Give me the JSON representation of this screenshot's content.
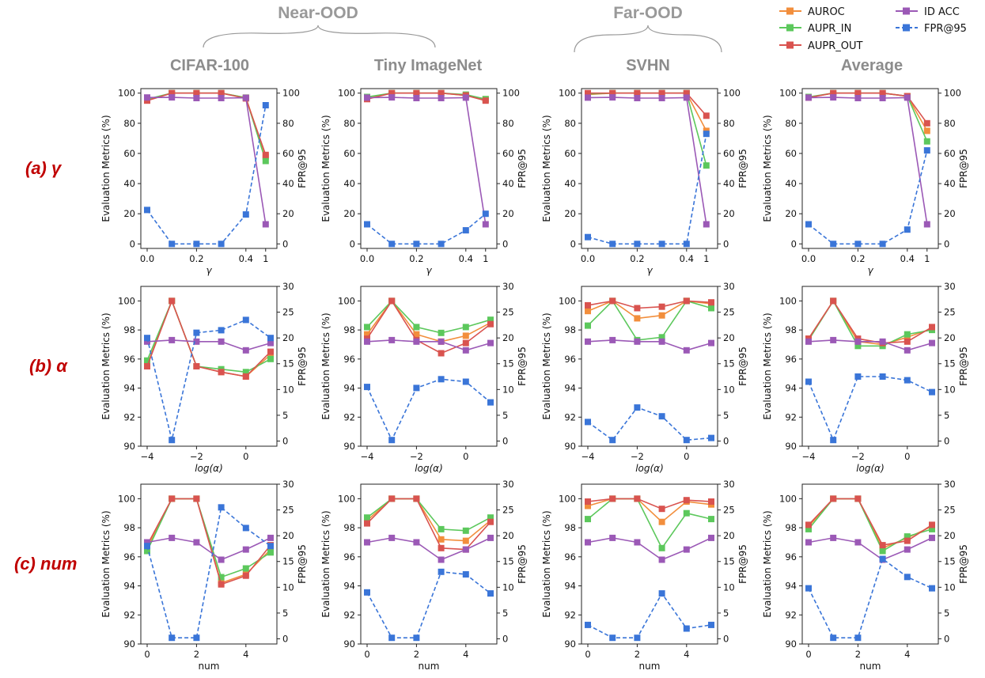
{
  "groups": [
    {
      "label": "Near-OOD",
      "columns": [
        0,
        1
      ]
    },
    {
      "label": "Far-OOD",
      "columns": [
        2
      ]
    }
  ],
  "columns": [
    "CIFAR-100",
    "Tiny ImageNet",
    "SVHN",
    "Average"
  ],
  "rows": [
    "(a)  γ",
    "(b) α",
    "(c) num"
  ],
  "legend": [
    {
      "name": "AUROC",
      "color": "#f28e3c",
      "style": "solid"
    },
    {
      "name": "ID ACC",
      "color": "#9b59b6",
      "style": "solid"
    },
    {
      "name": "AUPR_IN",
      "color": "#5cc85c",
      "style": "solid"
    },
    {
      "name": "FPR@95",
      "color": "#3a75d8",
      "style": "dashed"
    },
    {
      "name": "AUPR_OUT",
      "color": "#d9534f",
      "style": "solid"
    }
  ],
  "chart_data": [
    {
      "row": "gamma",
      "type": "line",
      "x": [
        0.0,
        0.1,
        0.2,
        0.3,
        0.4,
        1
      ],
      "x_ticks": [
        "0.0",
        "0.2",
        "0.4",
        "1"
      ],
      "xlabel": "γ",
      "ylabel_left": "Evaluation Metrics (%)",
      "ylabel_right": "FPR@95",
      "ylim_left": [
        -3,
        103
      ],
      "yticks_left": [
        0,
        20,
        40,
        60,
        80,
        100
      ],
      "ylim_right": [
        -3,
        103
      ],
      "yticks_right": [
        0,
        20,
        40,
        60,
        80,
        100
      ],
      "panels": [
        {
          "column": "CIFAR-100",
          "series": [
            {
              "name": "AUROC",
              "values": [
                95.5,
                100,
                100,
                100,
                97,
                58
              ]
            },
            {
              "name": "AUPR_IN",
              "values": [
                96,
                100,
                100,
                100,
                97,
                55
              ]
            },
            {
              "name": "AUPR_OUT",
              "values": [
                95,
                100,
                100,
                100,
                96.5,
                59
              ]
            },
            {
              "name": "ID ACC",
              "values": [
                97.1,
                97.2,
                96.7,
                96.7,
                96.9,
                13
              ]
            },
            {
              "name": "FPR@95",
              "values": [
                22.5,
                0,
                0,
                0,
                19.5,
                92
              ]
            }
          ]
        },
        {
          "column": "Tiny ImageNet",
          "series": [
            {
              "name": "AUROC",
              "values": [
                96.5,
                100,
                100,
                100,
                98.5,
                96
              ]
            },
            {
              "name": "AUPR_IN",
              "values": [
                97.5,
                100,
                100,
                100,
                99,
                96
              ]
            },
            {
              "name": "AUPR_OUT",
              "values": [
                96,
                100,
                100,
                100,
                98.5,
                95
              ]
            },
            {
              "name": "ID ACC",
              "values": [
                97,
                97.2,
                96.7,
                96.7,
                97,
                13
              ]
            },
            {
              "name": "FPR@95",
              "values": [
                13,
                0,
                0,
                0,
                9,
                20
              ]
            }
          ]
        },
        {
          "column": "SVHN",
          "series": [
            {
              "name": "AUROC",
              "values": [
                99,
                100,
                100,
                100,
                100,
                75
              ]
            },
            {
              "name": "AUPR_IN",
              "values": [
                99.5,
                100,
                100,
                100,
                100,
                52
              ]
            },
            {
              "name": "AUPR_OUT",
              "values": [
                100,
                100,
                100,
                100,
                100,
                85
              ]
            },
            {
              "name": "ID ACC",
              "values": [
                97,
                97.2,
                96.7,
                96.7,
                97,
                13
              ]
            },
            {
              "name": "FPR@95",
              "values": [
                4.5,
                0,
                0,
                0,
                0,
                73
              ]
            }
          ]
        },
        {
          "column": "Average",
          "series": [
            {
              "name": "AUROC",
              "values": [
                97,
                100,
                100,
                100,
                98,
                75
              ]
            },
            {
              "name": "AUPR_IN",
              "values": [
                97.5,
                100,
                100,
                100,
                98,
                68
              ]
            },
            {
              "name": "AUPR_OUT",
              "values": [
                97,
                100,
                100,
                100,
                98,
                80
              ]
            },
            {
              "name": "ID ACC",
              "values": [
                97,
                97.2,
                96.7,
                96.7,
                97,
                13
              ]
            },
            {
              "name": "FPR@95",
              "values": [
                13,
                0,
                0,
                0,
                9.5,
                62
              ]
            }
          ]
        }
      ]
    },
    {
      "row": "alpha",
      "type": "line",
      "x": [
        -4,
        -3,
        -2,
        -1,
        0,
        1
      ],
      "x_ticks": [
        "−4",
        "−2",
        "0"
      ],
      "xlabel": "log(α)",
      "ylabel_left": "Evaluation Metrics (%)",
      "ylabel_right": "FPR@95",
      "ylim_left": [
        90,
        101
      ],
      "yticks_left": [
        90,
        92,
        94,
        96,
        98,
        100
      ],
      "ylim_right": [
        -1,
        30
      ],
      "yticks_right": [
        0,
        5,
        10,
        15,
        20,
        25,
        30
      ],
      "panels": [
        {
          "column": "CIFAR-100",
          "series": [
            {
              "name": "AUROC",
              "values": [
                95.6,
                100,
                95.5,
                95.1,
                94.8,
                96.3
              ]
            },
            {
              "name": "AUPR_IN",
              "values": [
                95.9,
                100,
                95.5,
                95.3,
                95.1,
                96
              ]
            },
            {
              "name": "AUPR_OUT",
              "values": [
                95.5,
                100,
                95.5,
                95.1,
                94.8,
                96.5
              ]
            },
            {
              "name": "ID ACC",
              "values": [
                97.2,
                97.3,
                97.2,
                97.2,
                96.6,
                97.1
              ]
            },
            {
              "name": "FPR@95",
              "values": [
                20,
                0.2,
                21,
                21.5,
                23.5,
                20
              ]
            }
          ]
        },
        {
          "column": "Tiny ImageNet",
          "series": [
            {
              "name": "AUROC",
              "values": [
                97.7,
                100,
                97.7,
                97.2,
                97.6,
                98.5
              ]
            },
            {
              "name": "AUPR_IN",
              "values": [
                98.2,
                100,
                98.2,
                97.8,
                98.2,
                98.7
              ]
            },
            {
              "name": "AUPR_OUT",
              "values": [
                97.4,
                100,
                97.3,
                96.4,
                97.1,
                98.4
              ]
            },
            {
              "name": "ID ACC",
              "values": [
                97.2,
                97.3,
                97.2,
                97.2,
                96.6,
                97.1
              ]
            },
            {
              "name": "FPR@95",
              "values": [
                10.5,
                0.2,
                10.3,
                12,
                11.5,
                7.5
              ]
            }
          ]
        },
        {
          "column": "SVHN",
          "series": [
            {
              "name": "AUROC",
              "values": [
                99.3,
                100,
                98.8,
                99,
                100,
                99.8
              ]
            },
            {
              "name": "AUPR_IN",
              "values": [
                98.3,
                100,
                97.3,
                97.5,
                100,
                99.5
              ]
            },
            {
              "name": "AUPR_OUT",
              "values": [
                99.7,
                100,
                99.5,
                99.6,
                100,
                99.9
              ]
            },
            {
              "name": "ID ACC",
              "values": [
                97.2,
                97.3,
                97.2,
                97.2,
                96.6,
                97.1
              ]
            },
            {
              "name": "FPR@95",
              "values": [
                3.7,
                0.2,
                6.5,
                4.8,
                0.2,
                0.6
              ]
            }
          ]
        },
        {
          "column": "Average",
          "series": [
            {
              "name": "AUROC",
              "values": [
                97.4,
                100,
                97.2,
                97,
                97.5,
                98.1
              ]
            },
            {
              "name": "AUPR_IN",
              "values": [
                97.3,
                100,
                96.9,
                96.9,
                97.7,
                98
              ]
            },
            {
              "name": "AUPR_OUT",
              "values": [
                97.4,
                100,
                97.4,
                97.1,
                97.2,
                98.2
              ]
            },
            {
              "name": "ID ACC",
              "values": [
                97.2,
                97.3,
                97.2,
                97.2,
                96.6,
                97.1
              ]
            },
            {
              "name": "FPR@95",
              "values": [
                11.5,
                0.2,
                12.5,
                12.5,
                11.8,
                9.5
              ]
            }
          ]
        }
      ]
    },
    {
      "row": "num",
      "type": "line",
      "x": [
        0,
        1,
        2,
        3,
        4,
        5
      ],
      "x_ticks": [
        "0",
        "2",
        "4"
      ],
      "xlabel": "num",
      "ylabel_left": "Evaluation Metrics (%)",
      "ylabel_right": "FPR@95",
      "ylim_left": [
        90,
        101
      ],
      "yticks_left": [
        90,
        92,
        94,
        96,
        98,
        100
      ],
      "ylim_right": [
        -1,
        30
      ],
      "yticks_right": [
        0,
        5,
        10,
        15,
        20,
        25,
        30
      ],
      "panels": [
        {
          "column": "CIFAR-100",
          "series": [
            {
              "name": "AUROC",
              "values": [
                96.6,
                100,
                100,
                94.2,
                94.8,
                96.5
              ]
            },
            {
              "name": "AUPR_IN",
              "values": [
                96.4,
                100,
                100,
                94.6,
                95.2,
                96.3
              ]
            },
            {
              "name": "AUPR_OUT",
              "values": [
                96.8,
                100,
                100,
                94.1,
                94.7,
                96.8
              ]
            },
            {
              "name": "ID ACC",
              "values": [
                97,
                97.3,
                97,
                95.8,
                96.5,
                97.3
              ]
            },
            {
              "name": "FPR@95",
              "values": [
                18,
                0.2,
                0.2,
                25.5,
                21.5,
                18
              ]
            }
          ]
        },
        {
          "column": "Tiny ImageNet",
          "series": [
            {
              "name": "AUROC",
              "values": [
                98.5,
                100,
                100,
                97.2,
                97.1,
                98.5
              ]
            },
            {
              "name": "AUPR_IN",
              "values": [
                98.7,
                100,
                100,
                97.9,
                97.8,
                98.7
              ]
            },
            {
              "name": "AUPR_OUT",
              "values": [
                98.3,
                100,
                100,
                96.6,
                96.5,
                98.4
              ]
            },
            {
              "name": "ID ACC",
              "values": [
                97,
                97.3,
                97,
                95.8,
                96.5,
                97.3
              ]
            },
            {
              "name": "FPR@95",
              "values": [
                9,
                0.2,
                0.2,
                13,
                12.5,
                8.8
              ]
            }
          ]
        },
        {
          "column": "SVHN",
          "series": [
            {
              "name": "AUROC",
              "values": [
                99.5,
                100,
                100,
                98.4,
                99.8,
                99.6
              ]
            },
            {
              "name": "AUPR_IN",
              "values": [
                98.6,
                100,
                100,
                96.6,
                99,
                98.6
              ]
            },
            {
              "name": "AUPR_OUT",
              "values": [
                99.8,
                100,
                100,
                99.3,
                99.9,
                99.8
              ]
            },
            {
              "name": "ID ACC",
              "values": [
                97,
                97.3,
                97,
                95.8,
                96.5,
                97.3
              ]
            },
            {
              "name": "FPR@95",
              "values": [
                2.7,
                0.2,
                0.2,
                8.8,
                2,
                2.7
              ]
            }
          ]
        },
        {
          "column": "Average",
          "series": [
            {
              "name": "AUROC",
              "values": [
                98.1,
                100,
                100,
                96.6,
                97.3,
                98.1
              ]
            },
            {
              "name": "AUPR_IN",
              "values": [
                97.9,
                100,
                100,
                96.4,
                97.4,
                97.9
              ]
            },
            {
              "name": "AUPR_OUT",
              "values": [
                98.2,
                100,
                100,
                96.8,
                97.1,
                98.2
              ]
            },
            {
              "name": "ID ACC",
              "values": [
                97,
                97.3,
                97,
                95.8,
                96.5,
                97.3
              ]
            },
            {
              "name": "FPR@95",
              "values": [
                9.8,
                0.2,
                0.2,
                15.5,
                12,
                9.8
              ]
            }
          ]
        }
      ]
    }
  ]
}
